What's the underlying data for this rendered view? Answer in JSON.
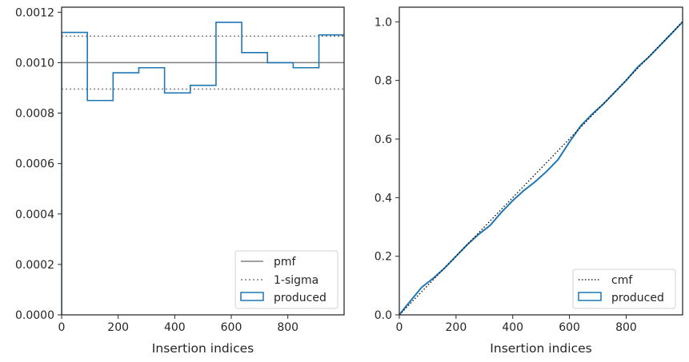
{
  "chart_data": [
    {
      "type": "line",
      "xlabel": "Insertion indices",
      "ylabel": "",
      "xlim": [
        0,
        999
      ],
      "ylim": [
        0,
        0.00122
      ],
      "xticks": [
        0,
        200,
        400,
        600,
        800
      ],
      "xtick_labels": [
        "0",
        "200",
        "400",
        "600",
        "800"
      ],
      "yticks": [
        0,
        0.0002,
        0.0004,
        0.0006,
        0.0008,
        0.001,
        0.0012
      ],
      "ytick_labels": [
        "0.0000",
        "0.0002",
        "0.0004",
        "0.0006",
        "0.0008",
        "0.0010",
        "0.0012"
      ],
      "legend_position": "lower right",
      "pmf": {
        "label": "pmf",
        "value": 0.001,
        "color": "#808080"
      },
      "sigma": {
        "label": "1-sigma",
        "values": [
          0.001105,
          0.000895
        ],
        "color": "#808080"
      },
      "produced": {
        "label": "produced",
        "color": "#1f77b4",
        "bin_edges": [
          0,
          91,
          182,
          273,
          364,
          455,
          546,
          637,
          728,
          819,
          910,
          1001
        ],
        "values": [
          0.00112,
          0.00085,
          0.00096,
          0.00098,
          0.00088,
          0.00091,
          0.00116,
          0.00104,
          0.001,
          0.00098,
          0.00111
        ]
      }
    },
    {
      "type": "line",
      "xlabel": "Insertion indices",
      "ylabel": "",
      "xlim": [
        0,
        999
      ],
      "ylim": [
        0,
        1.05
      ],
      "xticks": [
        0,
        200,
        400,
        600,
        800
      ],
      "xtick_labels": [
        "0",
        "200",
        "400",
        "600",
        "800"
      ],
      "yticks": [
        0,
        0.2,
        0.4,
        0.6,
        0.8,
        1.0
      ],
      "ytick_labels": [
        "0.0",
        "0.2",
        "0.4",
        "0.6",
        "0.8",
        "1.0"
      ],
      "legend_position": "lower right",
      "cmf": {
        "label": "cmf",
        "x": [
          0,
          999
        ],
        "y": [
          0,
          1.0
        ],
        "color": "#000000"
      },
      "produced": {
        "label": "produced",
        "color": "#1f77b4",
        "x": [
          0,
          20,
          50,
          80,
          120,
          160,
          200,
          240,
          280,
          320,
          360,
          400,
          440,
          480,
          520,
          560,
          600,
          640,
          680,
          720,
          760,
          800,
          840,
          880,
          920,
          960,
          999
        ],
        "y": [
          0,
          0.025,
          0.06,
          0.095,
          0.125,
          0.16,
          0.2,
          0.24,
          0.275,
          0.305,
          0.35,
          0.39,
          0.425,
          0.455,
          0.49,
          0.53,
          0.59,
          0.645,
          0.685,
          0.72,
          0.76,
          0.8,
          0.845,
          0.88,
          0.92,
          0.96,
          1.0
        ]
      }
    }
  ]
}
